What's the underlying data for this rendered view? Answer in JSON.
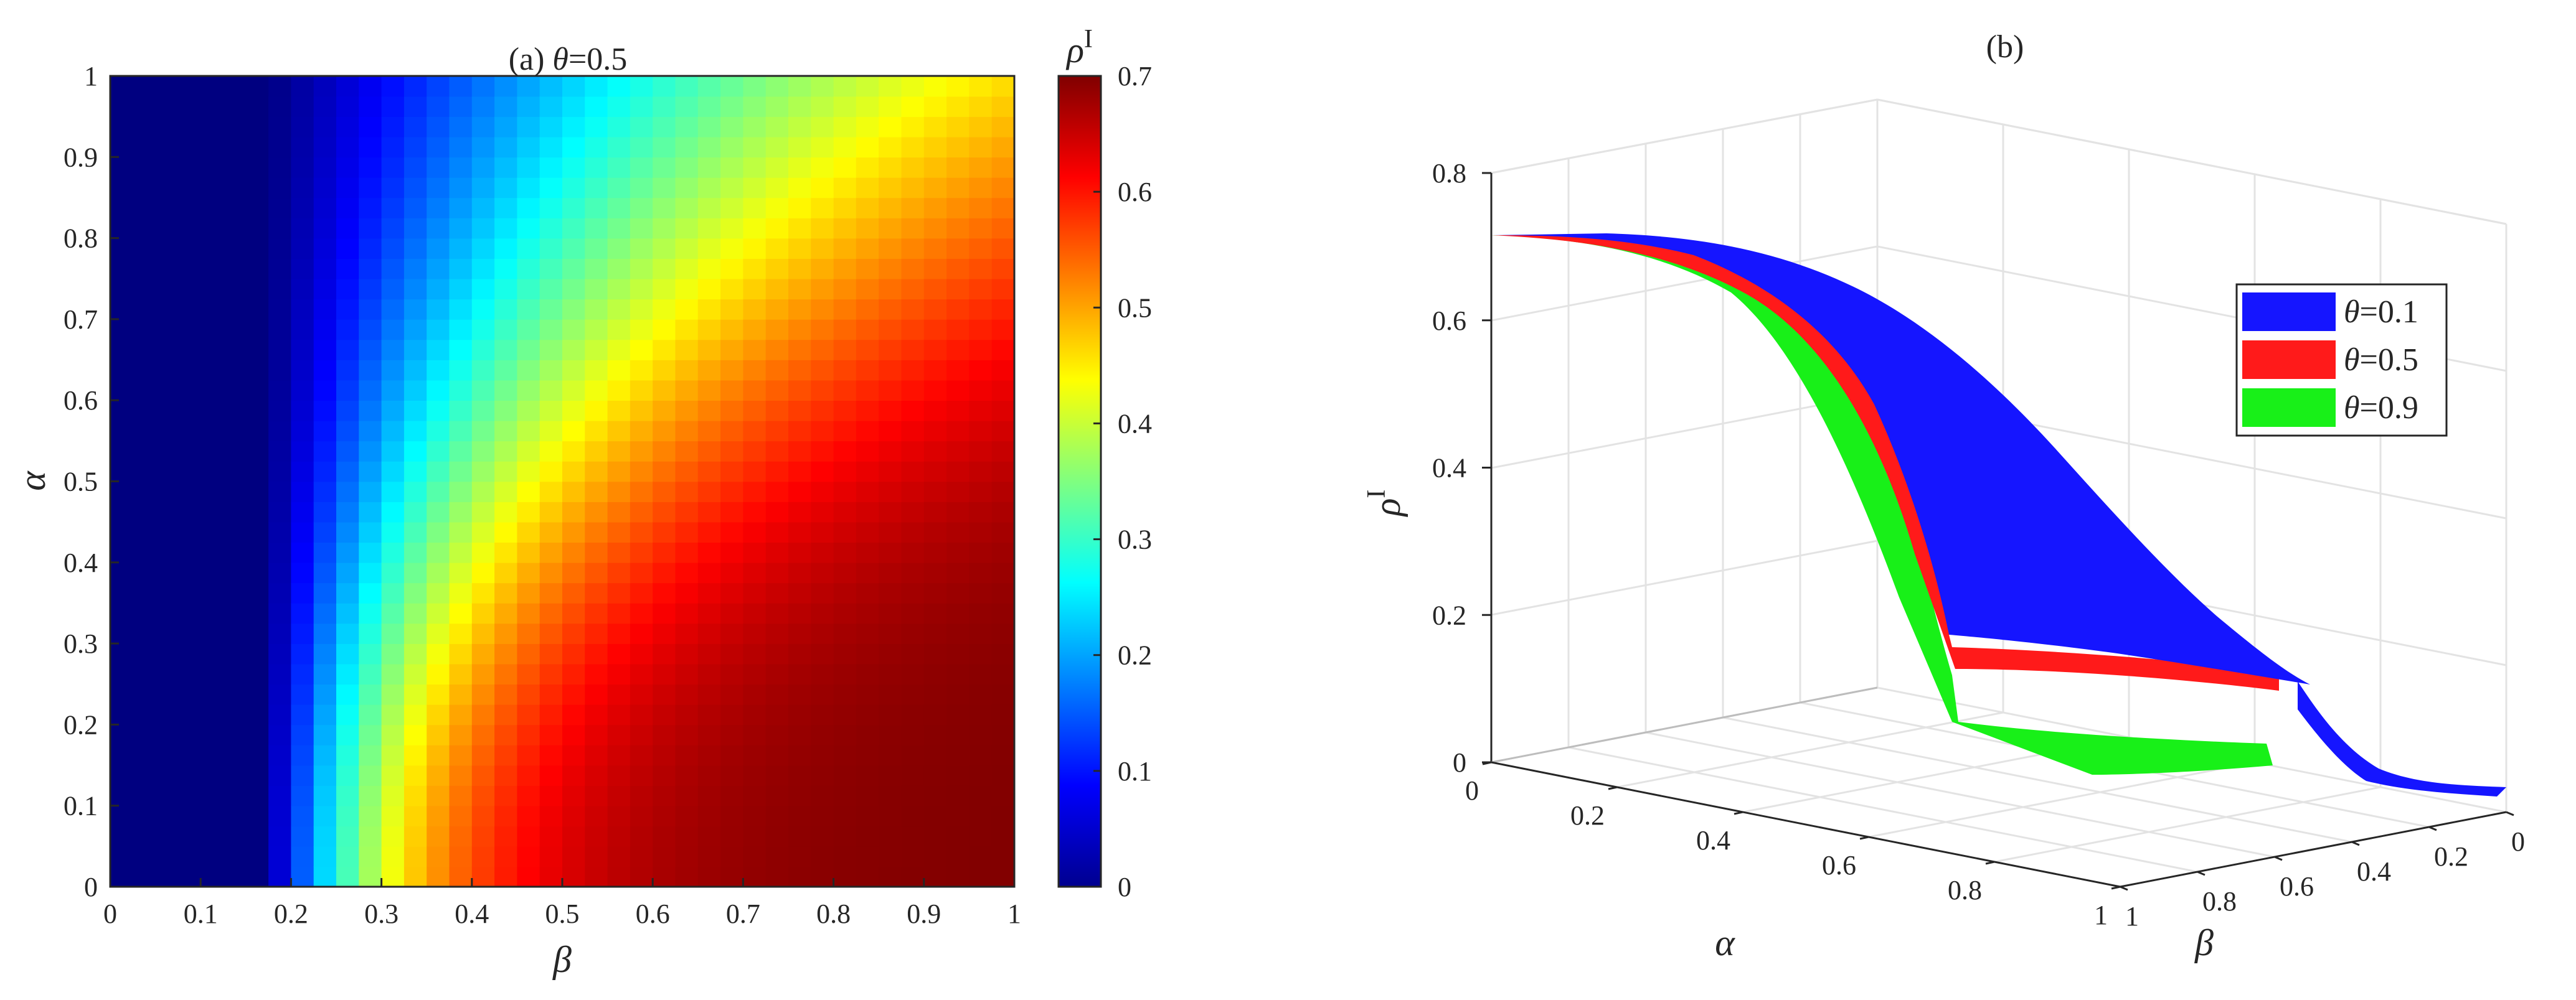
{
  "chart_data": [
    {
      "type": "heatmap",
      "title_prefix": "(a)",
      "title_symbol": "θ",
      "title_value": "=0.5",
      "xlabel": "β",
      "ylabel": "α",
      "xlim": [
        0,
        1
      ],
      "ylim": [
        0,
        1
      ],
      "xticks": [
        "0",
        "0.1",
        "0.2",
        "0.3",
        "0.4",
        "0.5",
        "0.6",
        "0.7",
        "0.8",
        "0.9",
        "1"
      ],
      "yticks": [
        "0",
        "0.1",
        "0.2",
        "0.3",
        "0.4",
        "0.5",
        "0.6",
        "0.7",
        "0.8",
        "0.9",
        "1"
      ],
      "grid_resolution": 40,
      "model": {
        "beta_threshold": 0.17,
        "max_value": 0.7,
        "note_shape": "value rises with beta above threshold and falls as alpha increases"
      },
      "colorbar": {
        "label_symbol": "ρ",
        "label_sup": "I",
        "range": [
          0,
          0.7
        ],
        "ticks": [
          "0",
          "0.1",
          "0.2",
          "0.3",
          "0.4",
          "0.5",
          "0.6",
          "0.7"
        ],
        "colormap": "jet"
      },
      "grid": false
    },
    {
      "type": "surface3d",
      "title": "(b)",
      "xlabel": "α",
      "ylabel": "β",
      "zlabel_symbol": "ρ",
      "zlabel_sup": "I",
      "zlim": [
        0,
        0.8
      ],
      "zticks": [
        "0",
        "0.2",
        "0.4",
        "0.6",
        "0.8"
      ],
      "alpha_ticks": [
        "0",
        "0.2",
        "0.4",
        "0.6",
        "0.8",
        "1"
      ],
      "beta_ticks": [
        "1",
        "0.8",
        "0.6",
        "0.4",
        "0.2",
        "0"
      ],
      "legend_position": "upper-right",
      "series": [
        {
          "symbol": "θ",
          "name": "=0.1",
          "color": "#1515ff"
        },
        {
          "symbol": "θ",
          "name": "=0.5",
          "color": "#ff1a1a"
        },
        {
          "symbol": "θ",
          "name": "=0.9",
          "color": "#18f018"
        }
      ],
      "grid": true
    }
  ]
}
